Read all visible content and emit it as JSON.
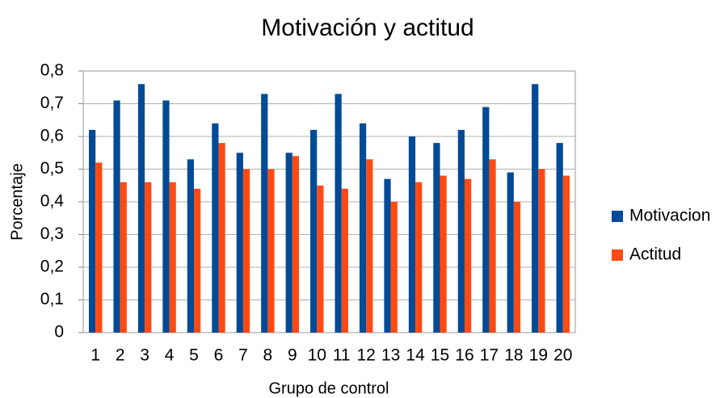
{
  "chart_data": {
    "type": "bar",
    "title": "Motivación y actitud",
    "xlabel": "Grupo de control",
    "ylabel": "Porcentaje",
    "categories": [
      "1",
      "2",
      "3",
      "4",
      "5",
      "6",
      "7",
      "8",
      "9",
      "10",
      "11",
      "12",
      "13",
      "14",
      "15",
      "16",
      "17",
      "18",
      "19",
      "20"
    ],
    "series": [
      {
        "name": "Motivacion",
        "color": "#004a96",
        "values": [
          0.62,
          0.71,
          0.76,
          0.71,
          0.53,
          0.64,
          0.55,
          0.73,
          0.55,
          0.62,
          0.73,
          0.64,
          0.47,
          0.6,
          0.58,
          0.62,
          0.69,
          0.49,
          0.76,
          0.58
        ]
      },
      {
        "name": "Actitud",
        "color": "#ff4a13",
        "values": [
          0.52,
          0.46,
          0.46,
          0.46,
          0.44,
          0.58,
          0.5,
          0.5,
          0.54,
          0.45,
          0.44,
          0.53,
          0.4,
          0.46,
          0.48,
          0.47,
          0.53,
          0.4,
          0.5,
          0.48
        ]
      }
    ],
    "ylim": [
      0,
      0.8
    ],
    "yticks": [
      0,
      {
        "value": 0.1,
        "label": "0,1"
      },
      {
        "value": 0.2,
        "label": "0,2"
      },
      {
        "value": 0.3,
        "label": "0,3"
      },
      {
        "value": 0.4,
        "label": "0,4"
      },
      {
        "value": 0.5,
        "label": "0,5"
      },
      {
        "value": 0.6,
        "label": "0,6"
      },
      {
        "value": 0.7,
        "label": "0,7"
      },
      {
        "value": 0.8,
        "label": "0,8"
      }
    ],
    "grid": true,
    "legend": "right"
  }
}
